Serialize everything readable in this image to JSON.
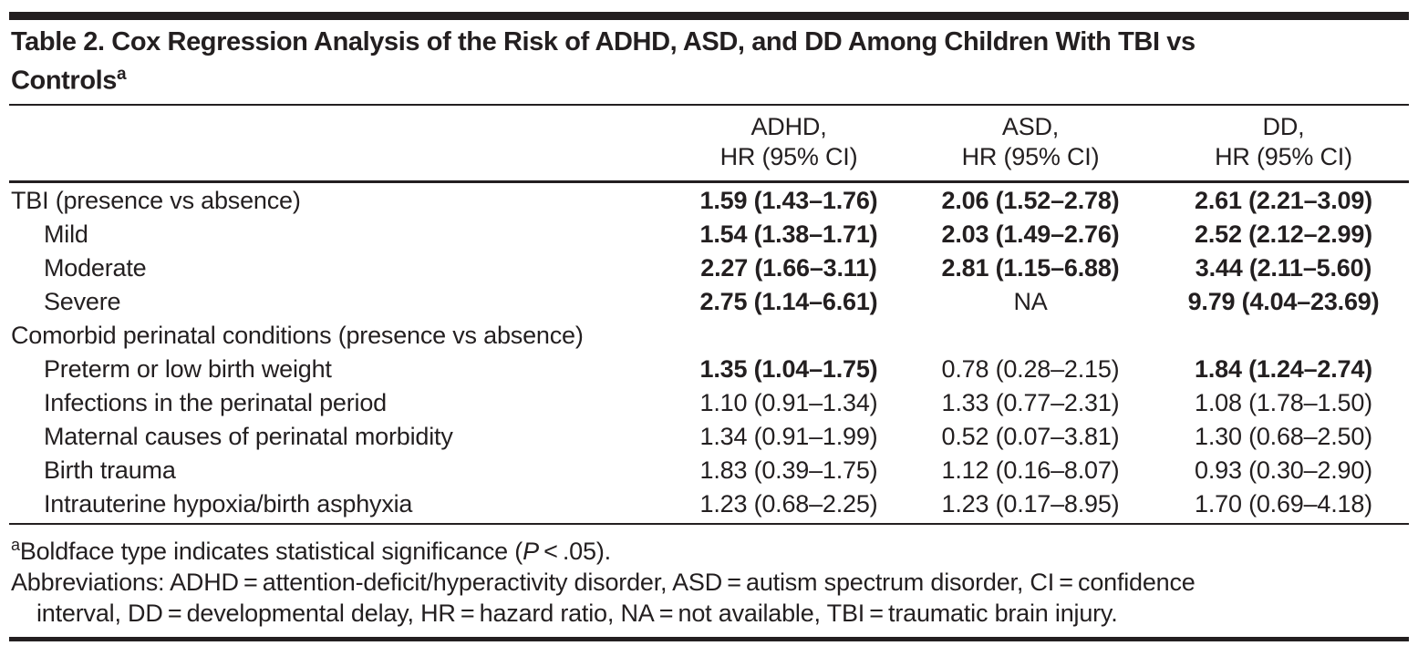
{
  "colors": {
    "text": "#231f20",
    "rule": "#231f20",
    "background": "#ffffff"
  },
  "table": {
    "title": {
      "line1": "Table 2. Cox Regression Analysis of the Risk of ADHD, ASD, and DD Among Children With TBI vs",
      "line2": "Controls",
      "superscript": "a"
    },
    "columns": [
      {
        "line1": "ADHD,",
        "line2": "HR (95% CI)"
      },
      {
        "line1": "ASD,",
        "line2": "HR (95% CI)"
      },
      {
        "line1": "DD,",
        "line2": "HR (95% CI)"
      }
    ],
    "rows": [
      {
        "label": "TBI (presence vs absence)",
        "indent": false,
        "values": [
          {
            "text": "1.59 (1.43–1.76)",
            "bold": true
          },
          {
            "text": "2.06 (1.52–2.78)",
            "bold": true
          },
          {
            "text": "2.61 (2.21–3.09)",
            "bold": true
          }
        ]
      },
      {
        "label": "Mild",
        "indent": true,
        "values": [
          {
            "text": "1.54 (1.38–1.71)",
            "bold": true
          },
          {
            "text": "2.03 (1.49–2.76)",
            "bold": true
          },
          {
            "text": "2.52 (2.12–2.99)",
            "bold": true
          }
        ]
      },
      {
        "label": "Moderate",
        "indent": true,
        "values": [
          {
            "text": "2.27 (1.66–3.11)",
            "bold": true
          },
          {
            "text": "2.81 (1.15–6.88)",
            "bold": true
          },
          {
            "text": "3.44 (2.11–5.60)",
            "bold": true
          }
        ]
      },
      {
        "label": "Severe",
        "indent": true,
        "values": [
          {
            "text": "2.75 (1.14–6.61)",
            "bold": true
          },
          {
            "text": "NA",
            "bold": false
          },
          {
            "text": "9.79 (4.04–23.69)",
            "bold": true
          }
        ]
      },
      {
        "label": "Comorbid perinatal conditions (presence vs absence)",
        "indent": false,
        "values": [
          {
            "text": "",
            "bold": false
          },
          {
            "text": "",
            "bold": false
          },
          {
            "text": "",
            "bold": false
          }
        ]
      },
      {
        "label": "Preterm or low birth weight",
        "indent": true,
        "values": [
          {
            "text": "1.35 (1.04–1.75)",
            "bold": true
          },
          {
            "text": "0.78 (0.28–2.15)",
            "bold": false
          },
          {
            "text": "1.84 (1.24–2.74)",
            "bold": true
          }
        ]
      },
      {
        "label": "Infections in the perinatal period",
        "indent": true,
        "values": [
          {
            "text": "1.10 (0.91–1.34)",
            "bold": false
          },
          {
            "text": "1.33 (0.77–2.31)",
            "bold": false
          },
          {
            "text": "1.08 (1.78–1.50)",
            "bold": false
          }
        ]
      },
      {
        "label": "Maternal causes of perinatal morbidity",
        "indent": true,
        "values": [
          {
            "text": "1.34 (0.91–1.99)",
            "bold": false
          },
          {
            "text": "0.52 (0.07–3.81)",
            "bold": false
          },
          {
            "text": "1.30 (0.68–2.50)",
            "bold": false
          }
        ]
      },
      {
        "label": "Birth trauma",
        "indent": true,
        "values": [
          {
            "text": "1.83 (0.39–1.75)",
            "bold": false
          },
          {
            "text": "1.12 (0.16–8.07)",
            "bold": false
          },
          {
            "text": "0.93 (0.30–2.90)",
            "bold": false
          }
        ]
      },
      {
        "label": "Intrauterine hypoxia/birth asphyxia",
        "indent": true,
        "values": [
          {
            "text": "1.23 (0.68–2.25)",
            "bold": false
          },
          {
            "text": "1.23 (0.17–8.95)",
            "bold": false
          },
          {
            "text": "1.70 (0.69–4.18)",
            "bold": false
          }
        ]
      }
    ],
    "footnotes": {
      "a": {
        "superscript": "a",
        "pre": "Boldface type indicates statistical significance (",
        "italic": "P",
        "post": " < .05)."
      },
      "abbreviations_line1": "Abbreviations: ADHD = attention-deficit/hyperactivity disorder, ASD = autism spectrum disorder, CI = confidence",
      "abbreviations_line2": "interval, DD = developmental delay, HR = hazard ratio, NA = not available, TBI = traumatic brain injury."
    }
  }
}
